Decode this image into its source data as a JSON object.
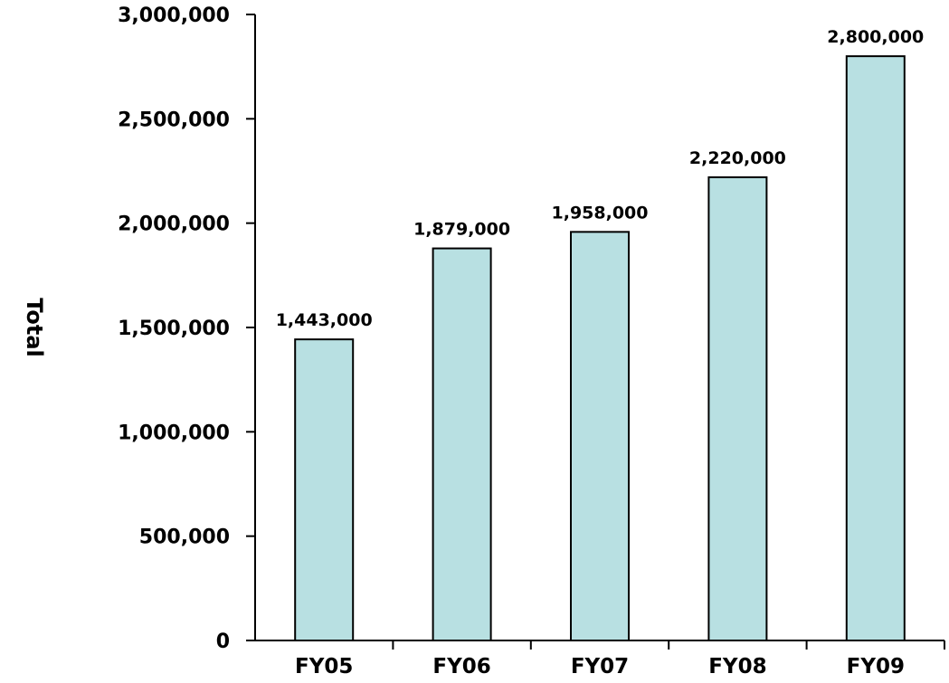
{
  "chart_data": {
    "type": "bar",
    "title": "",
    "xlabel": "",
    "ylabel": "Total",
    "categories": [
      "FY05",
      "FY06",
      "FY07",
      "FY08",
      "FY09"
    ],
    "values": [
      1443000,
      1879000,
      1958000,
      2220000,
      2800000
    ],
    "data_labels": [
      "1,443,000",
      "1,879,000",
      "1,958,000",
      "2,220,000",
      "2,800,000"
    ],
    "ylim": [
      0,
      3000000
    ],
    "yticks": [
      0,
      500000,
      1000000,
      1500000,
      2000000,
      2500000,
      3000000
    ],
    "ytick_labels": [
      "0",
      "500,000",
      "1,000,000",
      "1,500,000",
      "2,000,000",
      "2,500,000",
      "3,000,000"
    ],
    "grid": false,
    "legend": "none",
    "bar_color": "#b8e0e2",
    "bar_edge_color": "#000000"
  }
}
